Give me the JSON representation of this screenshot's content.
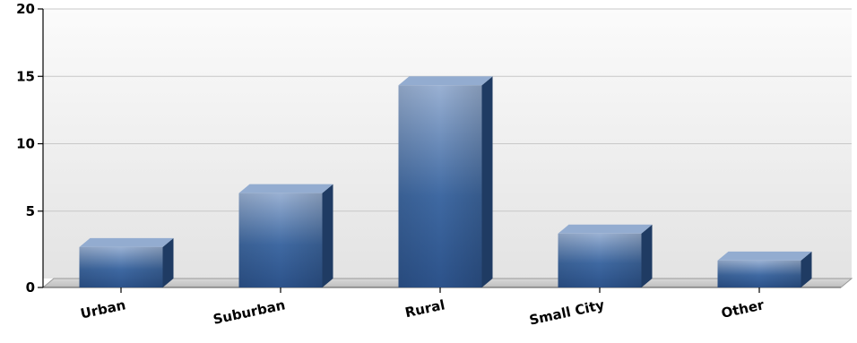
{
  "chart_data": {
    "type": "bar",
    "categories": [
      "Urban",
      "Suburban",
      "Rural",
      "Small City",
      "Other"
    ],
    "values": [
      3,
      7,
      15,
      4,
      2
    ],
    "title": "",
    "xlabel": "",
    "ylabel": "",
    "ylim": [
      0,
      20
    ],
    "yticks": [
      0,
      5,
      10,
      15,
      20
    ],
    "ytick_labels": [
      "0",
      "5",
      "10",
      "15",
      "20"
    ],
    "grid": true,
    "legend": "none",
    "style": "3d",
    "colors": {
      "bar_top": "#93acd0",
      "bar_front_light": "#8aa4c9",
      "bar_front_dark": "#2f5a94",
      "bar_side": "#1f3b63",
      "grid": "#c8c8c8",
      "background_top": "#fafafa",
      "background_bottom": "#e2e2e2",
      "axis": "#000000"
    }
  }
}
